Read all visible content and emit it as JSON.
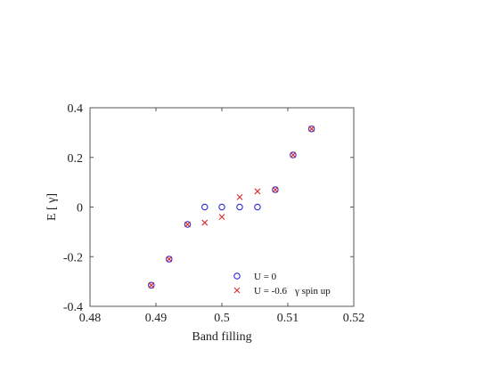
{
  "chart_data": {
    "type": "scatter",
    "xlabel": "Band filling",
    "ylabel": "E [ γ]",
    "xlim": [
      0.48,
      0.52
    ],
    "ylim": [
      -0.4,
      0.4
    ],
    "grid": false,
    "legend_position": "bottom-right",
    "x_ticks": [
      "0.48",
      "0.49",
      "0.5",
      "0.51",
      "0.52"
    ],
    "y_ticks": [
      "-0.4",
      "-0.2",
      "0",
      "0.2",
      "0.4"
    ],
    "annotation": "γ spin up",
    "series": [
      {
        "name": "U = 0",
        "marker": "circle",
        "color": "#2b2bd6",
        "points": [
          [
            0.4893,
            -0.315
          ],
          [
            0.492,
            -0.21
          ],
          [
            0.4948,
            -0.07
          ],
          [
            0.4974,
            0.0
          ],
          [
            0.5,
            0.0
          ],
          [
            0.5027,
            0.0
          ],
          [
            0.5054,
            0.0
          ],
          [
            0.5081,
            0.07
          ],
          [
            0.5108,
            0.21
          ],
          [
            0.5136,
            0.315
          ]
        ]
      },
      {
        "name": "U = -0.6",
        "marker": "x",
        "color": "#d62b2b",
        "points": [
          [
            0.4893,
            -0.315
          ],
          [
            0.492,
            -0.21
          ],
          [
            0.4948,
            -0.07
          ],
          [
            0.4974,
            -0.063
          ],
          [
            0.5,
            -0.04
          ],
          [
            0.5027,
            0.04
          ],
          [
            0.5054,
            0.063
          ],
          [
            0.5081,
            0.07
          ],
          [
            0.5108,
            0.21
          ],
          [
            0.5136,
            0.315
          ]
        ]
      }
    ]
  }
}
